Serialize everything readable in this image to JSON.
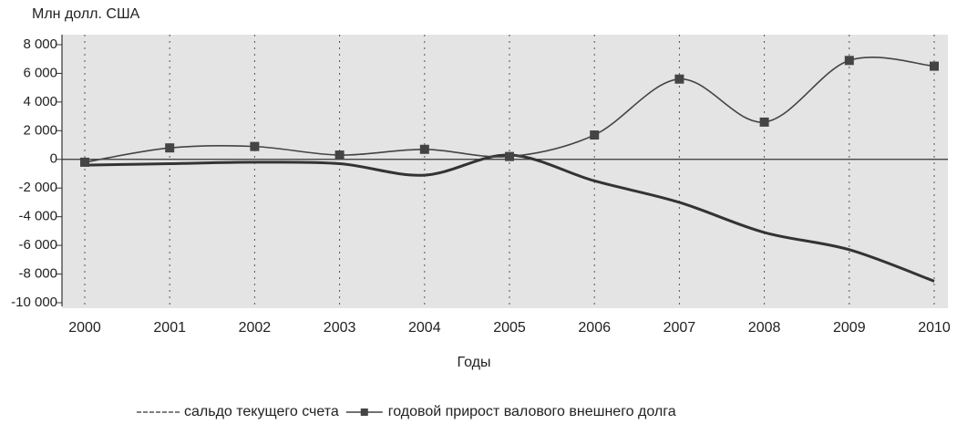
{
  "chart_data": {
    "type": "line",
    "title": "Млн долл. США",
    "x_label": "Годы",
    "x": [
      2000,
      2001,
      2002,
      2003,
      2004,
      2005,
      2006,
      2007,
      2008,
      2009,
      2010
    ],
    "xlim": [
      2000,
      2010
    ],
    "xticks": [
      2000,
      2001,
      2002,
      2003,
      2004,
      2005,
      2006,
      2007,
      2008,
      2009,
      2010
    ],
    "ylim": [
      -10000,
      8000
    ],
    "yticks": [
      {
        "value": -10000,
        "label": "-10 000"
      },
      {
        "value": -8000,
        "label": "-8 000"
      },
      {
        "value": -6000,
        "label": "-6 000"
      },
      {
        "value": -4000,
        "label": "-4 000"
      },
      {
        "value": -2000,
        "label": "-2 000"
      },
      0,
      {
        "value": 2000,
        "label": "2 000"
      },
      {
        "value": 4000,
        "label": "4 000"
      },
      {
        "value": 6000,
        "label": "6 000"
      },
      {
        "value": 8000,
        "label": "8 000"
      }
    ],
    "grid": "x",
    "smooth": true,
    "series": [
      {
        "name": "сальдо текущего счета",
        "color": "#333333",
        "marker": "none",
        "values": [
          -400,
          -300,
          -200,
          -300,
          -1100,
          300,
          -1500,
          -3000,
          -5100,
          -6300,
          -8500
        ]
      },
      {
        "name": "годовой прирост валового внешнего долга",
        "color": "#444444",
        "marker": "square",
        "values": [
          -200,
          800,
          900,
          300,
          700,
          200,
          1700,
          5600,
          2600,
          6900,
          6500
        ]
      }
    ]
  }
}
